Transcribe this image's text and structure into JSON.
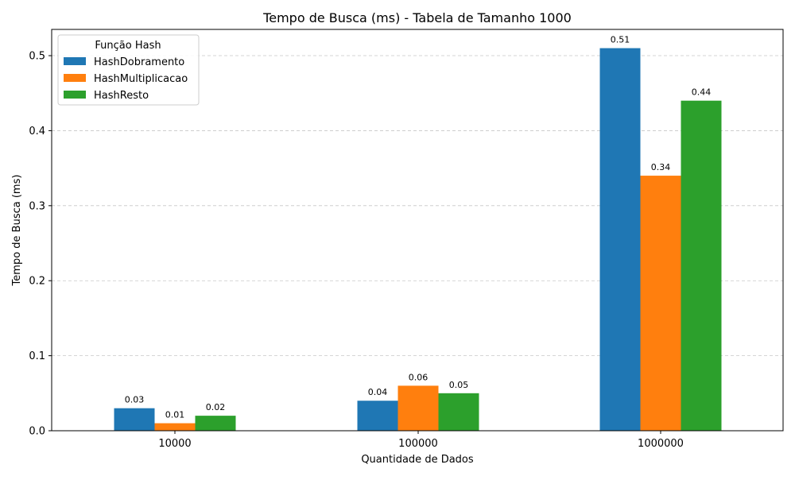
{
  "chart_data": {
    "type": "bar",
    "title": "Tempo de Busca (ms) - Tabela de Tamanho 1000",
    "xlabel": "Quantidade de Dados",
    "ylabel": "Tempo de Busca (ms)",
    "categories": [
      "10000",
      "100000",
      "1000000"
    ],
    "series": [
      {
        "name": "HashDobramento",
        "color": "#1f77b4",
        "values": [
          0.03,
          0.04,
          0.51
        ],
        "labels": [
          "0.03",
          "0.04",
          "0.51"
        ]
      },
      {
        "name": "HashMultiplicacao",
        "color": "#ff7f0e",
        "values": [
          0.01,
          0.06,
          0.34
        ],
        "labels": [
          "0.01",
          "0.06",
          "0.34"
        ]
      },
      {
        "name": "HashResto",
        "color": "#2ca02c",
        "values": [
          0.02,
          0.05,
          0.44
        ],
        "labels": [
          "0.02",
          "0.05",
          "0.44"
        ]
      }
    ],
    "ylim": [
      0,
      0.535
    ],
    "yticks": [
      0.0,
      0.1,
      0.2,
      0.3,
      0.4,
      0.5
    ],
    "ytick_labels": [
      "0.0",
      "0.1",
      "0.2",
      "0.3",
      "0.4",
      "0.5"
    ],
    "grid": "horizontal dashed",
    "legend": {
      "title": "Função Hash",
      "placement": "top-left"
    }
  }
}
